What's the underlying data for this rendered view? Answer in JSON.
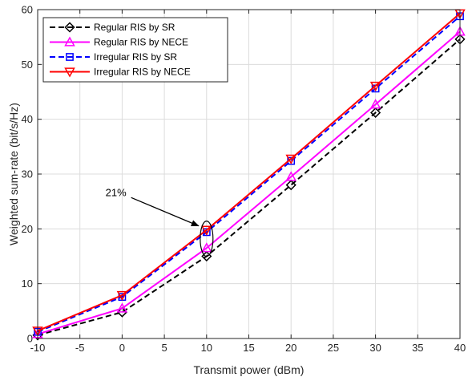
{
  "chart_data": {
    "type": "line",
    "xlabel": "Transmit power (dBm)",
    "ylabel": "Weighted sum-rate (bit/s/Hz)",
    "xlim": [
      -10,
      40
    ],
    "ylim": [
      0,
      60
    ],
    "xticks": [
      -10,
      -5,
      0,
      5,
      10,
      15,
      20,
      25,
      30,
      35,
      40
    ],
    "yticks": [
      0,
      10,
      20,
      30,
      40,
      50,
      60
    ],
    "grid": true,
    "legend_position": "top-left",
    "x": [
      -10,
      0,
      10,
      20,
      30,
      40
    ],
    "series": [
      {
        "name": "Regular RIS by SR",
        "values": [
          0.6,
          4.8,
          15.0,
          28.0,
          41.2,
          54.6
        ],
        "color": "#000000",
        "dash": "dashed",
        "marker": "diamond"
      },
      {
        "name": "Regular RIS by NECE",
        "values": [
          0.8,
          5.5,
          16.5,
          29.5,
          42.7,
          56.0
        ],
        "color": "#ff00ff",
        "dash": "solid",
        "marker": "triangle-up"
      },
      {
        "name": "Irregular RIS by SR",
        "values": [
          1.2,
          7.6,
          19.4,
          32.4,
          45.6,
          58.8
        ],
        "color": "#0000ff",
        "dash": "dashed",
        "marker": "square"
      },
      {
        "name": "Irregular RIS by NECE",
        "values": [
          1.4,
          7.9,
          19.8,
          32.8,
          46.1,
          59.3
        ],
        "color": "#ff0000",
        "dash": "solid",
        "marker": "triangle-down"
      }
    ],
    "annotations": [
      {
        "text": "21%",
        "target_x": 10,
        "target_y": 18.2,
        "text_x": 0.5,
        "text_y": 26
      }
    ]
  }
}
